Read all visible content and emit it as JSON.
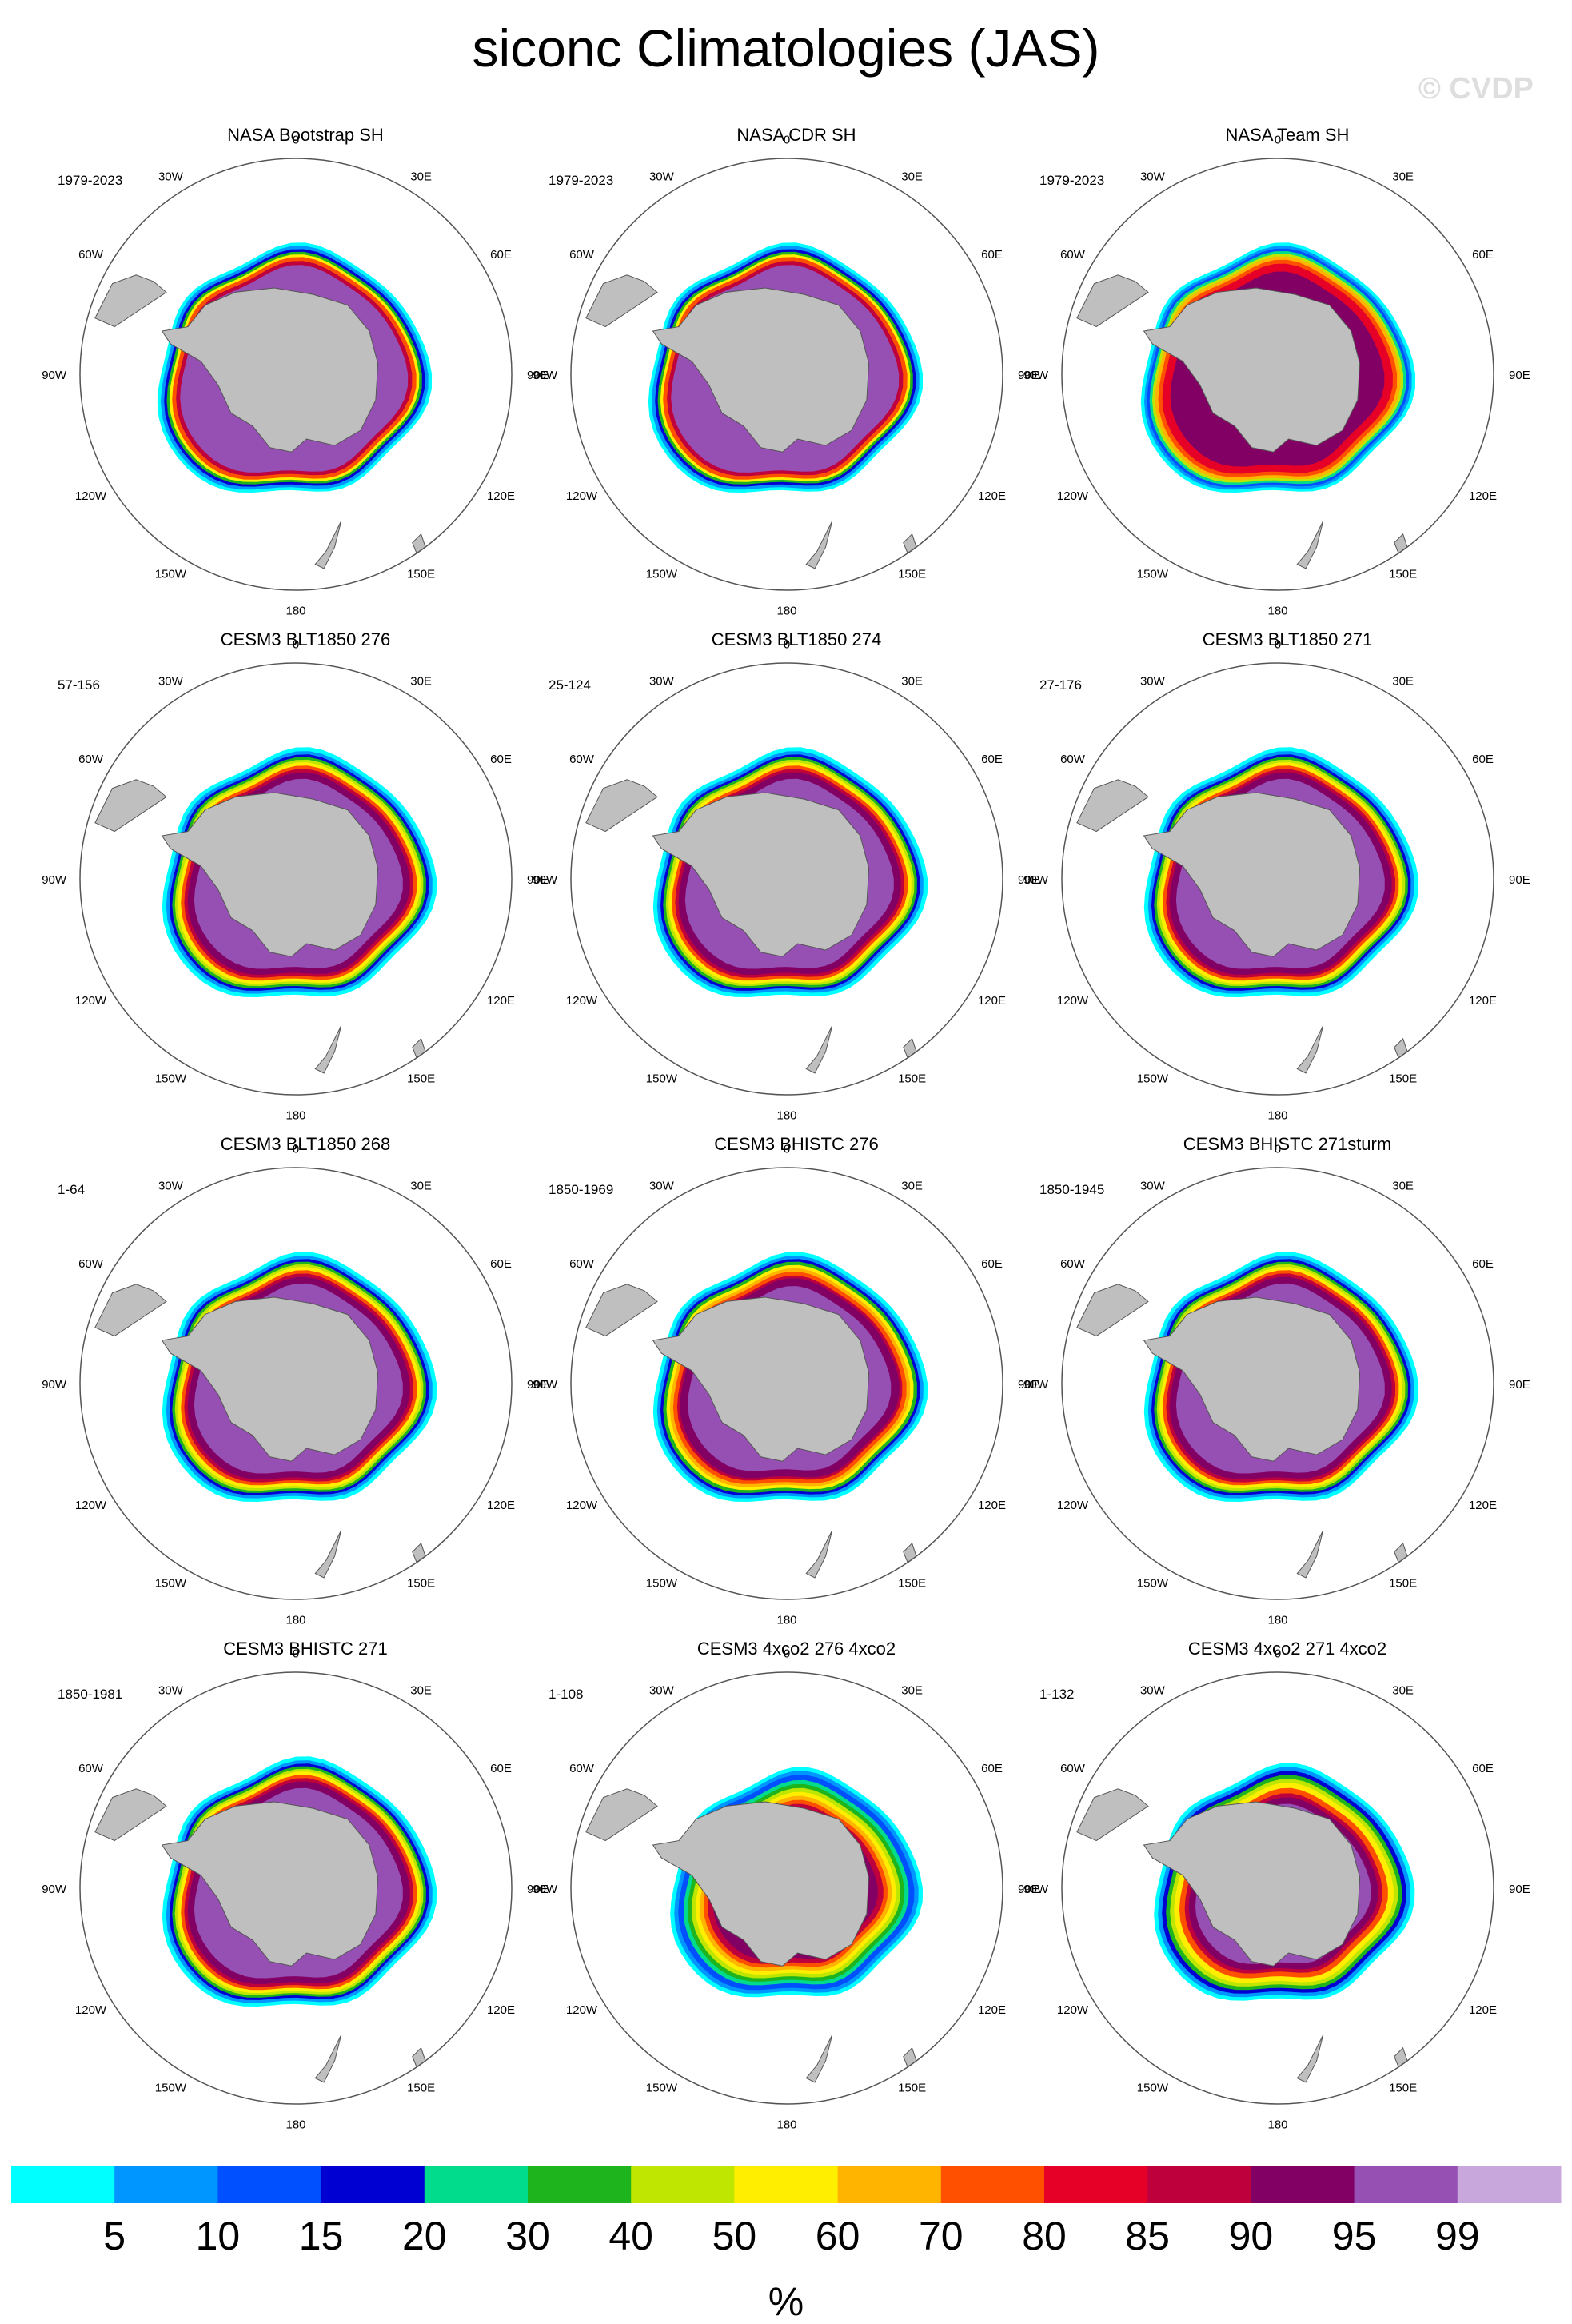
{
  "title": "siconc Climatologies (JAS)",
  "watermark": "© CVDP",
  "longitude_labels": [
    "0",
    "30E",
    "60E",
    "90E",
    "120E",
    "150E",
    "180",
    "150W",
    "120W",
    "90W",
    "60W",
    "30W"
  ],
  "panels": [
    {
      "title": "NASA Bootstrap SH",
      "period": "1979-2023",
      "style": "obs-bootstrap"
    },
    {
      "title": "NASA CDR SH",
      "period": "1979-2023",
      "style": "obs-cdr"
    },
    {
      "title": "NASA Team SH",
      "period": "1979-2023",
      "style": "obs-team"
    },
    {
      "title": "CESM3 BLT1850 276",
      "period": "57-156",
      "style": "model"
    },
    {
      "title": "CESM3 BLT1850 274",
      "period": "25-124",
      "style": "model"
    },
    {
      "title": "CESM3 BLT1850 271",
      "period": "27-176",
      "style": "model"
    },
    {
      "title": "CESM3 BLT1850 268",
      "period": "1-64",
      "style": "model"
    },
    {
      "title": "CESM3 BHISTC 276",
      "period": "1850-1969",
      "style": "model-hist"
    },
    {
      "title": "CESM3 BHISTC 271sturm",
      "period": "1850-1945",
      "style": "model"
    },
    {
      "title": "CESM3 BHISTC 271",
      "period": "1850-1981",
      "style": "model"
    },
    {
      "title": "CESM3 4xco2 276 4xco2",
      "period": "1-108",
      "style": "warm"
    },
    {
      "title": "CESM3 4xco2 271 4xco2",
      "period": "1-132",
      "style": "warm2"
    }
  ],
  "colorbar": {
    "unit": "%",
    "labels": [
      "5",
      "10",
      "15",
      "20",
      "30",
      "40",
      "50",
      "60",
      "70",
      "80",
      "85",
      "90",
      "95",
      "99"
    ],
    "colors": [
      "#00ffff",
      "#0096ff",
      "#0050ff",
      "#0000d2",
      "#00dc8c",
      "#1eb41e",
      "#bee600",
      "#ffee00",
      "#ffb400",
      "#ff5000",
      "#e60028",
      "#be003c",
      "#820064",
      "#9650b4",
      "#c8a8dc"
    ]
  },
  "colors": {
    "land": "#bfbfbf",
    "coast": "#555555",
    "frame": "#555555"
  }
}
